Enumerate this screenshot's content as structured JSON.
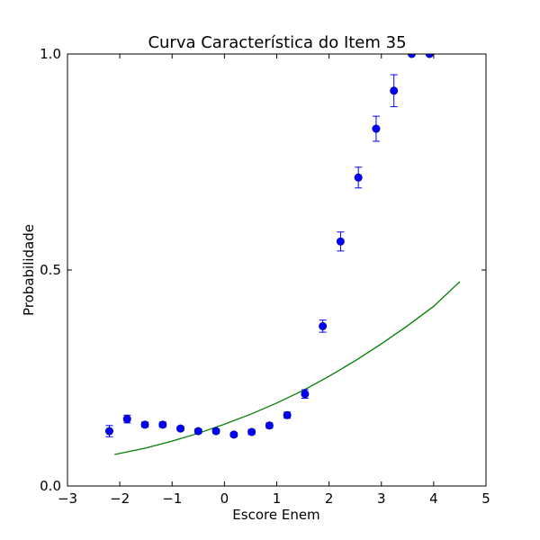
{
  "chart_data": {
    "type": "scatter",
    "title": "Curva Característica do Item 35",
    "xlabel": "Escore Enem",
    "ylabel": "Probabilidade",
    "xlim": [
      -3,
      5
    ],
    "ylim": [
      0.0,
      1.0
    ],
    "x_ticks": [
      -3,
      -2,
      -1,
      0,
      1,
      2,
      3,
      4,
      5
    ],
    "x_tick_labels": [
      "−3",
      "−2",
      "−1",
      "0",
      "1",
      "2",
      "3",
      "4",
      "5"
    ],
    "y_ticks": [
      0.0,
      0.5,
      1.0
    ],
    "y_tick_labels": [
      "0.0",
      "0.5",
      "1.0"
    ],
    "grid": false,
    "legend": "none",
    "series": [
      {
        "kind": "points-with-errorbars",
        "color": "#0000ff",
        "x": [
          -2.2,
          -1.86,
          -1.52,
          -1.18,
          -0.84,
          -0.5,
          -0.16,
          0.18,
          0.52,
          0.86,
          1.2,
          1.54,
          1.88,
          2.22,
          2.56,
          2.9,
          3.24,
          3.58,
          3.92
        ],
        "y": [
          0.127,
          0.155,
          0.142,
          0.142,
          0.133,
          0.127,
          0.127,
          0.119,
          0.125,
          0.14,
          0.164,
          0.213,
          0.37,
          0.566,
          0.714,
          0.827,
          0.915,
          1.0,
          1.0
        ],
        "err": [
          0.013,
          0.009,
          0.006,
          0.006,
          0.005,
          0.005,
          0.005,
          0.005,
          0.006,
          0.006,
          0.007,
          0.01,
          0.014,
          0.022,
          0.024,
          0.029,
          0.037,
          0.0,
          0.0
        ]
      },
      {
        "kind": "curve",
        "color": "#008000",
        "x": [
          -2.1,
          -1.5,
          -1.0,
          -0.5,
          0.0,
          0.5,
          1.0,
          1.5,
          2.0,
          2.5,
          3.0,
          3.5,
          4.0,
          4.5
        ],
        "y": [
          0.073,
          0.088,
          0.104,
          0.122,
          0.143,
          0.166,
          0.192,
          0.221,
          0.254,
          0.29,
          0.329,
          0.371,
          0.416,
          0.473
        ]
      }
    ]
  }
}
